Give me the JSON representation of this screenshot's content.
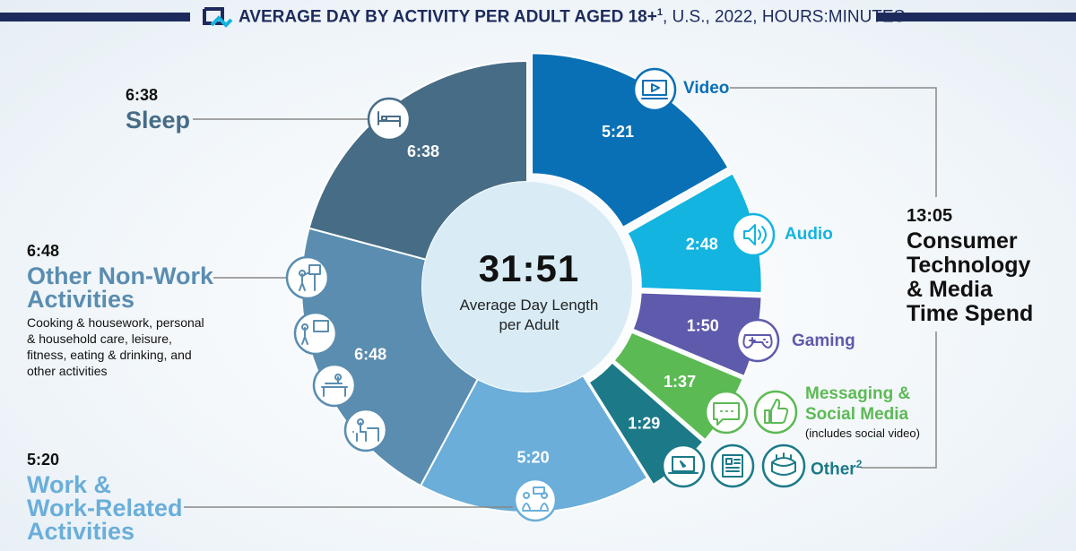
{
  "header": {
    "title_bold": "AVERAGE DAY BY ACTIVITY PER ADULT AGED 18+",
    "title_sup": "1",
    "title_rest": ", U.S., 2022, HOURS:MINUTES",
    "logo_icon": "nielsen-logo-icon",
    "color": "#1d2b5c"
  },
  "center": {
    "value": "31:51",
    "label_line1": "Average Day Length",
    "label_line2": "per Adult"
  },
  "annotations": {
    "sleep": {
      "time": "6:38",
      "label": "Sleep"
    },
    "other_nonwork": {
      "time": "6:48",
      "label_line1": "Other Non-Work",
      "label_line2": "Activities",
      "desc_line1": "Cooking & housework, personal",
      "desc_line2": "& household care, leisure,",
      "desc_line3": "fitness, eating & drinking, and",
      "desc_line4": "other activities"
    },
    "work": {
      "time": "5:20",
      "label_line1": "Work &",
      "label_line2": "Work-Related",
      "label_line3": "Activities"
    },
    "video": {
      "label": "Video"
    },
    "audio": {
      "label": "Audio"
    },
    "gaming": {
      "label": "Gaming"
    },
    "messaging": {
      "label_line1": "Messaging &",
      "label_line2": "Social Media",
      "note": "(includes social video)"
    },
    "other2": {
      "label": "Other",
      "sup": "2"
    },
    "total": {
      "time": "13:05",
      "label_line1": "Consumer",
      "label_line2": "Technology",
      "label_line3": "& Media",
      "label_line4": "Time Spend"
    }
  },
  "icons": [
    "bed-icon",
    "video-play-icon",
    "speaker-icon",
    "gamepad-icon",
    "chat-bubble-icon",
    "thumbs-up-icon",
    "laptop-icon",
    "newspaper-icon",
    "stadium-icon",
    "person-easel-icon",
    "person-screen-icon",
    "massage-table-icon",
    "person-desk-icon",
    "meeting-icon"
  ],
  "chart_data": {
    "type": "pie",
    "title": "AVERAGE DAY BY ACTIVITY PER ADULT AGED 18+1, U.S., 2022, HOURS:MINUTES",
    "center_total": "31:51",
    "slices": [
      {
        "name": "Video",
        "label": "5:21",
        "minutes": 321,
        "color": "#0a70b5",
        "group": "Consumer Technology & Media"
      },
      {
        "name": "Audio",
        "label": "2:48",
        "minutes": 168,
        "color": "#14b4e0",
        "group": "Consumer Technology & Media"
      },
      {
        "name": "Gaming",
        "label": "1:50",
        "minutes": 110,
        "color": "#5e5aac",
        "group": "Consumer Technology & Media"
      },
      {
        "name": "Messaging & Social Media",
        "label": "1:37",
        "minutes": 97,
        "color": "#5cba55",
        "group": "Consumer Technology & Media"
      },
      {
        "name": "Other",
        "label": "1:29",
        "minutes": 89,
        "color": "#1c7a88",
        "group": "Consumer Technology & Media"
      },
      {
        "name": "Work & Work-Related Activities",
        "label": "5:20",
        "minutes": 320,
        "color": "#6aaed9",
        "group": ""
      },
      {
        "name": "Other Non-Work Activities",
        "label": "6:48",
        "minutes": 408,
        "color": "#5a8db0",
        "group": ""
      },
      {
        "name": "Sleep",
        "label": "6:38",
        "minutes": 398,
        "color": "#476c86",
        "group": ""
      }
    ],
    "group_total": {
      "name": "Consumer Technology & Media Time Spend",
      "label": "13:05",
      "minutes": 785
    }
  }
}
